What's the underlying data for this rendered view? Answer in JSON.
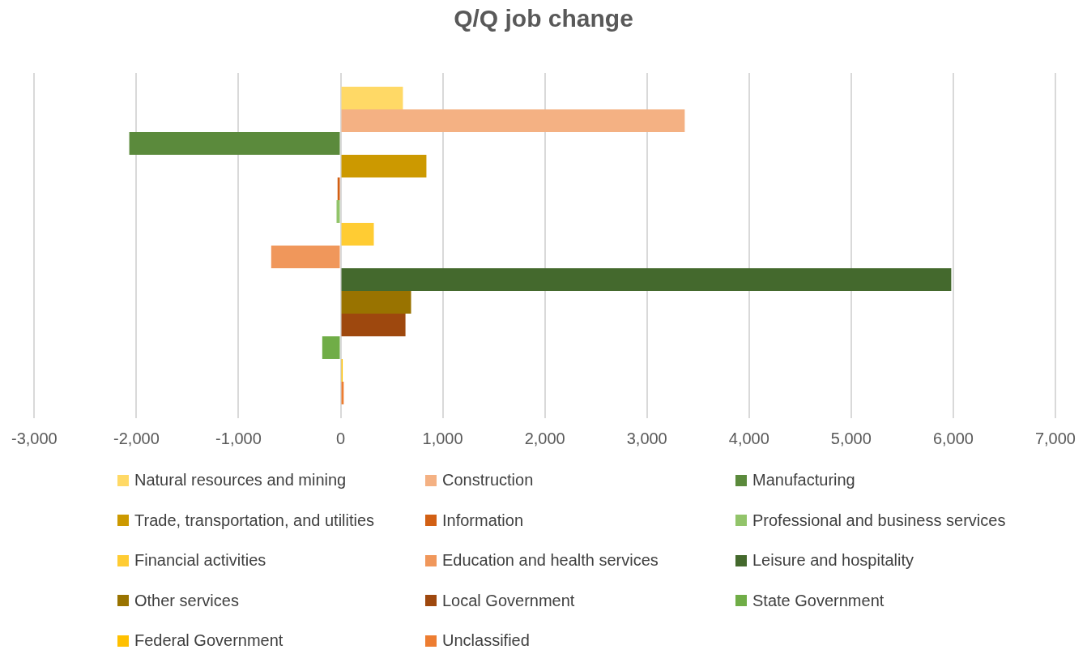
{
  "chart_data": {
    "type": "bar",
    "orientation": "horizontal",
    "title": "Q/Q job change",
    "categories": [
      null
    ],
    "series": [
      {
        "name": "Natural resources and mining",
        "color": "#ffd966",
        "values": [
          610
        ]
      },
      {
        "name": "Construction",
        "color": "#f4b183",
        "values": [
          3370
        ]
      },
      {
        "name": "Manufacturing",
        "color": "#5b8a3c",
        "values": [
          -2070
        ]
      },
      {
        "name": "Trade, transportation, and utilities",
        "color": "#cc9900",
        "values": [
          840
        ]
      },
      {
        "name": "Information",
        "color": "#d26014",
        "values": [
          -30
        ]
      },
      {
        "name": "Professional and business services",
        "color": "#92c46a",
        "values": [
          -40
        ]
      },
      {
        "name": "Financial activities",
        "color": "#ffcc33",
        "values": [
          325
        ]
      },
      {
        "name": "Education and health services",
        "color": "#f0975b",
        "values": [
          -680
        ]
      },
      {
        "name": "Leisure and hospitality",
        "color": "#44692d",
        "values": [
          5980
        ]
      },
      {
        "name": "Other services",
        "color": "#997300",
        "values": [
          690
        ]
      },
      {
        "name": "Local Government",
        "color": "#9e480e",
        "values": [
          635
        ]
      },
      {
        "name": "State Government",
        "color": "#70ad47",
        "values": [
          -180
        ]
      },
      {
        "name": "Federal Government",
        "color": "#ffc000",
        "values": [
          20
        ]
      },
      {
        "name": "Unclassified",
        "color": "#ed7d31",
        "values": [
          30
        ]
      }
    ],
    "xlim": [
      -3000,
      7000
    ],
    "xticks": [
      {
        "value": -3000,
        "label": "-3,000"
      },
      {
        "value": -2000,
        "label": "-2,000"
      },
      {
        "value": -1000,
        "label": "-1,000"
      },
      0,
      {
        "value": 1000,
        "label": "1,000"
      },
      {
        "value": 2000,
        "label": "2,000"
      },
      {
        "value": 3000,
        "label": "3,000"
      },
      {
        "value": 4000,
        "label": "4,000"
      },
      {
        "value": 5000,
        "label": "5,000"
      },
      {
        "value": 6000,
        "label": "6,000"
      },
      {
        "value": 7000,
        "label": "7,000"
      }
    ],
    "grid": "x",
    "legend": "bottom"
  }
}
